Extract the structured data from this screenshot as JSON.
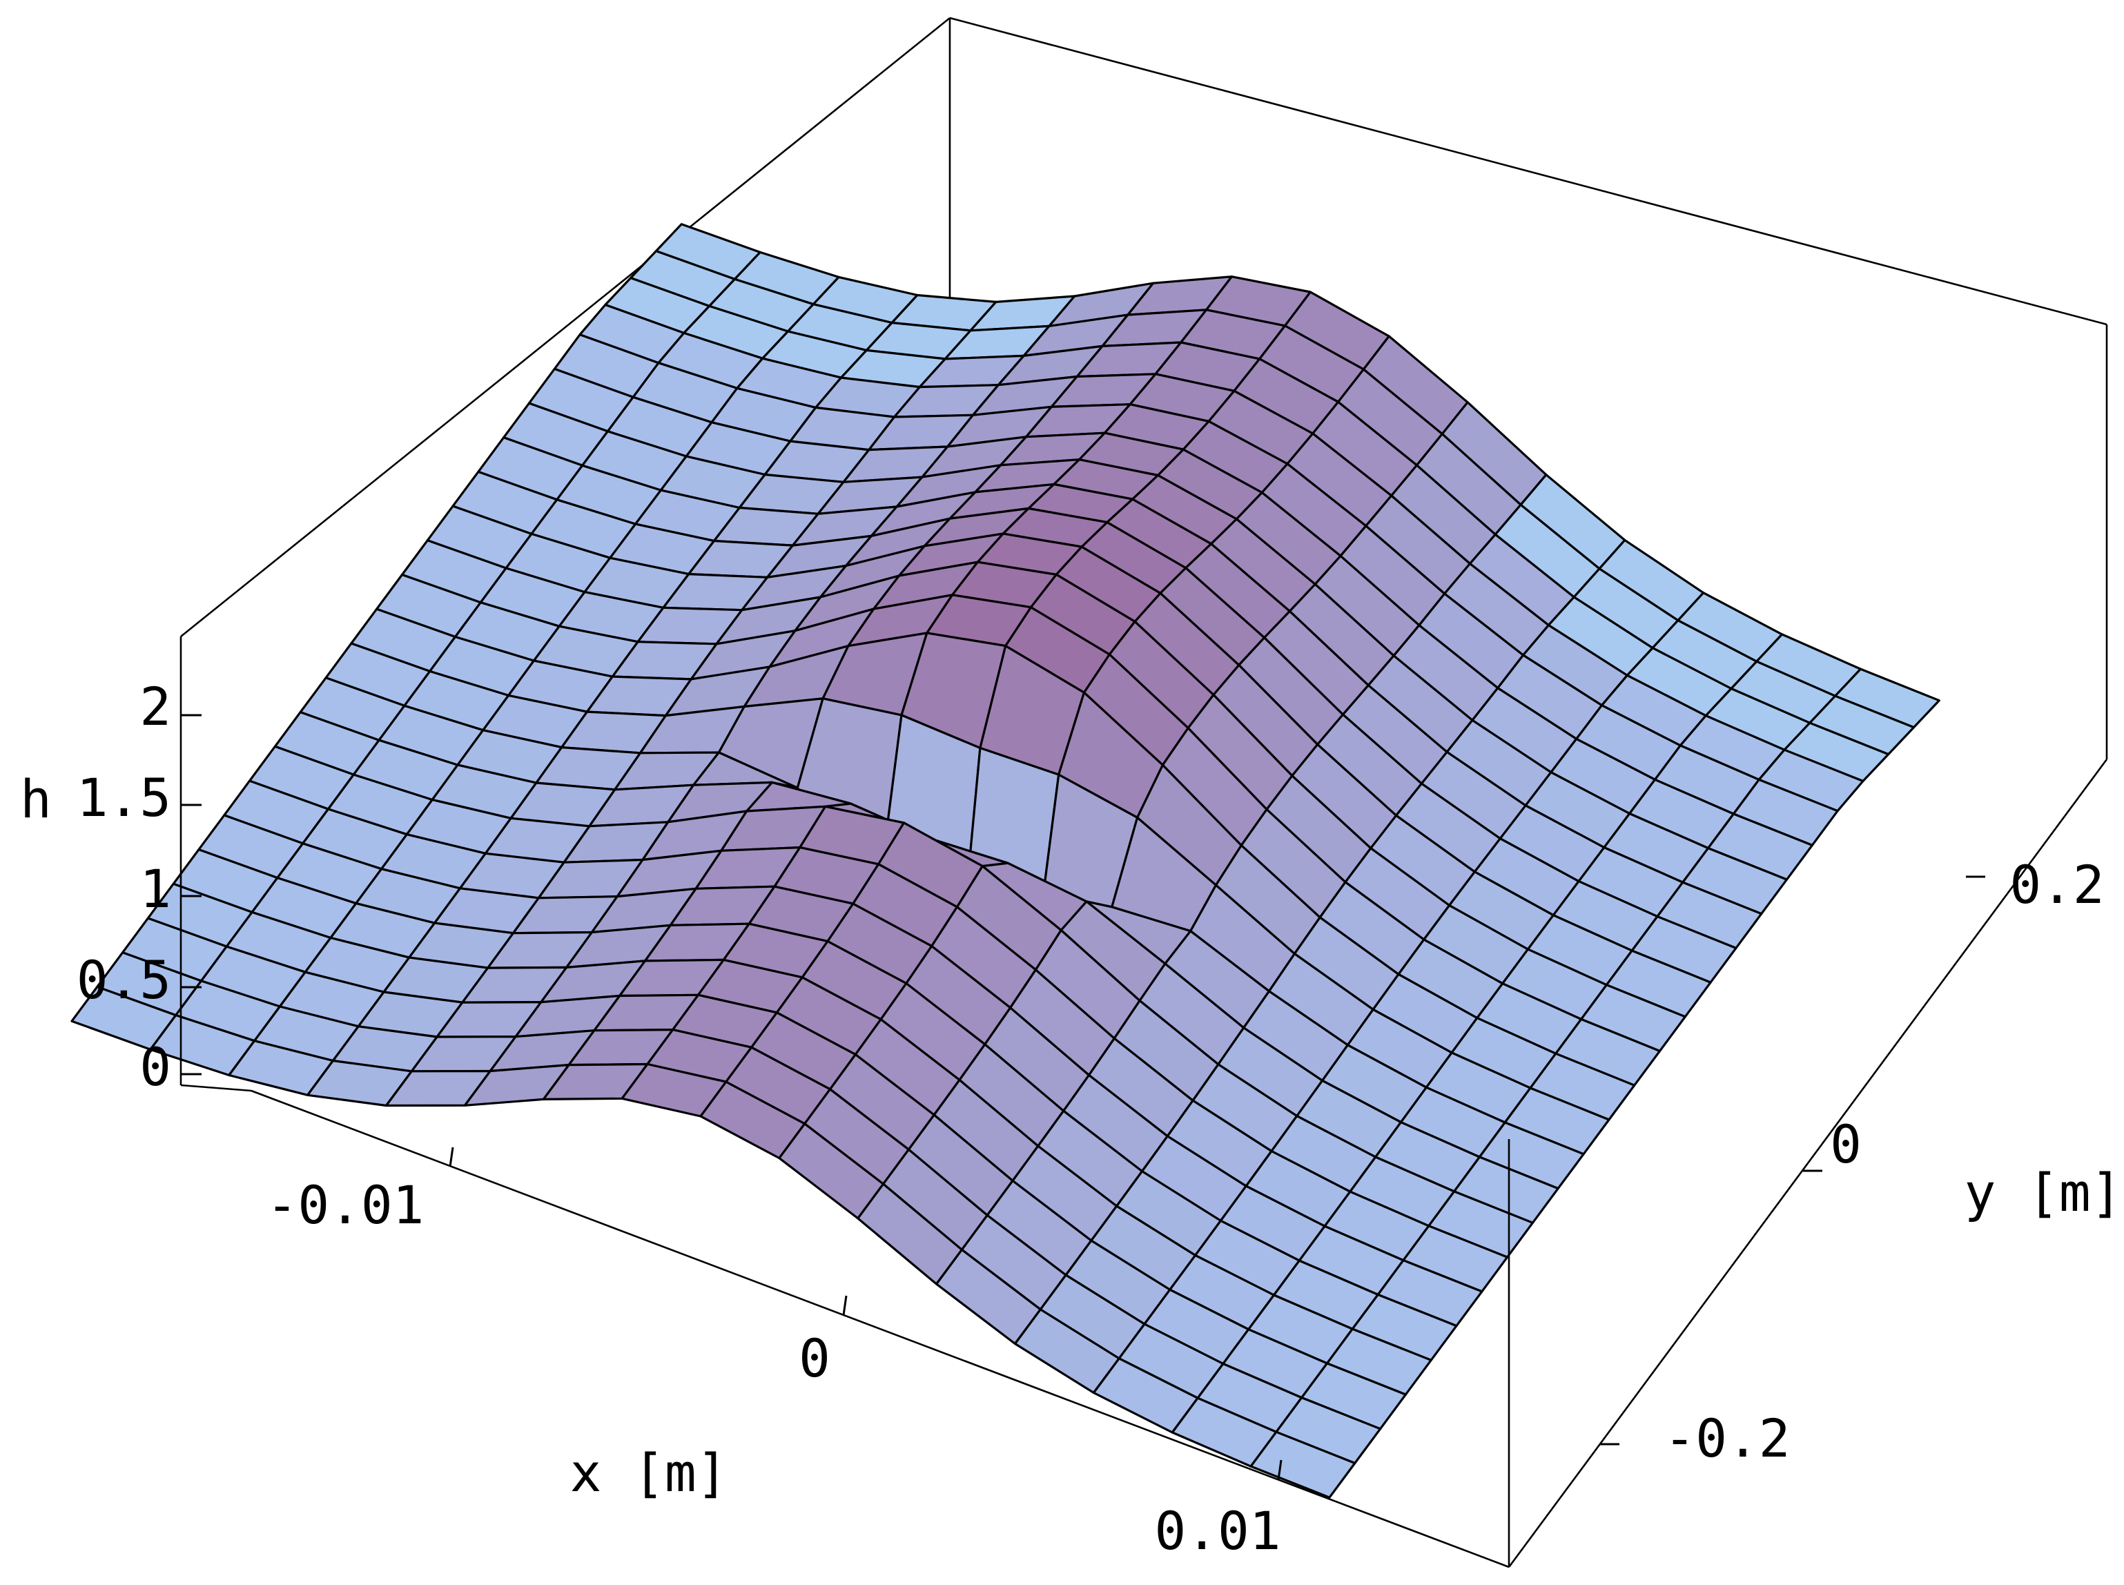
{
  "chart_data": {
    "type": "surface3d",
    "title": "",
    "axes": {
      "x": {
        "label": "x [m]",
        "range": [
          -0.015,
          0.015
        ],
        "ticks": [
          -0.01,
          0,
          0.01
        ],
        "tick_labels": [
          "-0.01",
          "0",
          "0.01"
        ]
      },
      "y": {
        "label": "y [m]",
        "range": [
          -0.3,
          0.3
        ],
        "ticks": [
          -0.2,
          0,
          0.2
        ],
        "tick_labels": [
          "-0.2",
          "0",
          "0.2"
        ]
      },
      "z": {
        "label": "h",
        "range": [
          0,
          2.3
        ],
        "ticks": [
          0,
          0.5,
          1,
          1.5,
          2
        ],
        "tick_labels": [
          "0",
          "0.5",
          "1",
          "1.5",
          "2"
        ]
      }
    },
    "surface": {
      "description_of_shape": "water depth h over (x,y); flat at h=1 far from channel centre x=0; two-step ridge along y with a central hump and a dry gap near y=0",
      "baseline_h": 1.0,
      "ridge_max_h": 2.15,
      "grid_x_count": 16,
      "grid_y_count": 24
    },
    "colors": {
      "low": "#a8c0ec",
      "high": "#9a6ea2",
      "background": "#ffffff",
      "mesh": "#000000"
    }
  }
}
